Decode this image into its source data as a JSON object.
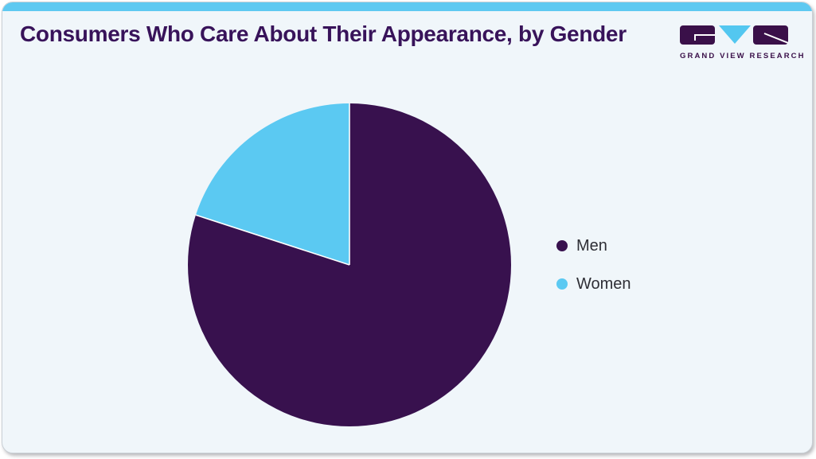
{
  "header": {
    "title": "Consumers Who Care About Their Appearance, by Gender",
    "title_color": "#38135a"
  },
  "logo": {
    "brand": "GRAND VIEW RESEARCH",
    "block_color": "#3a1049",
    "triangle_color": "#53c7f0"
  },
  "theme": {
    "page_background": "#ffffff",
    "card_background": "#f0f6fa",
    "card_border": "#c9d0d6",
    "accent_bar": "#5ec9f1",
    "legend_text_color": "#2e2e35"
  },
  "chart_data": {
    "type": "pie",
    "title": "Consumers Who Care About Their Appearance, by Gender",
    "categories": [
      "Men",
      "Women"
    ],
    "values": [
      80,
      20
    ],
    "unit": "percent",
    "colors": [
      "#38114e",
      "#5bc9f2"
    ],
    "start_angle_deg": -90,
    "direction": "clockwise",
    "slice_separator_color": "#ffffff",
    "legend_position": "right",
    "legend": [
      {
        "label": "Men",
        "color": "#38114e"
      },
      {
        "label": "Women",
        "color": "#5bc9f2"
      }
    ]
  }
}
